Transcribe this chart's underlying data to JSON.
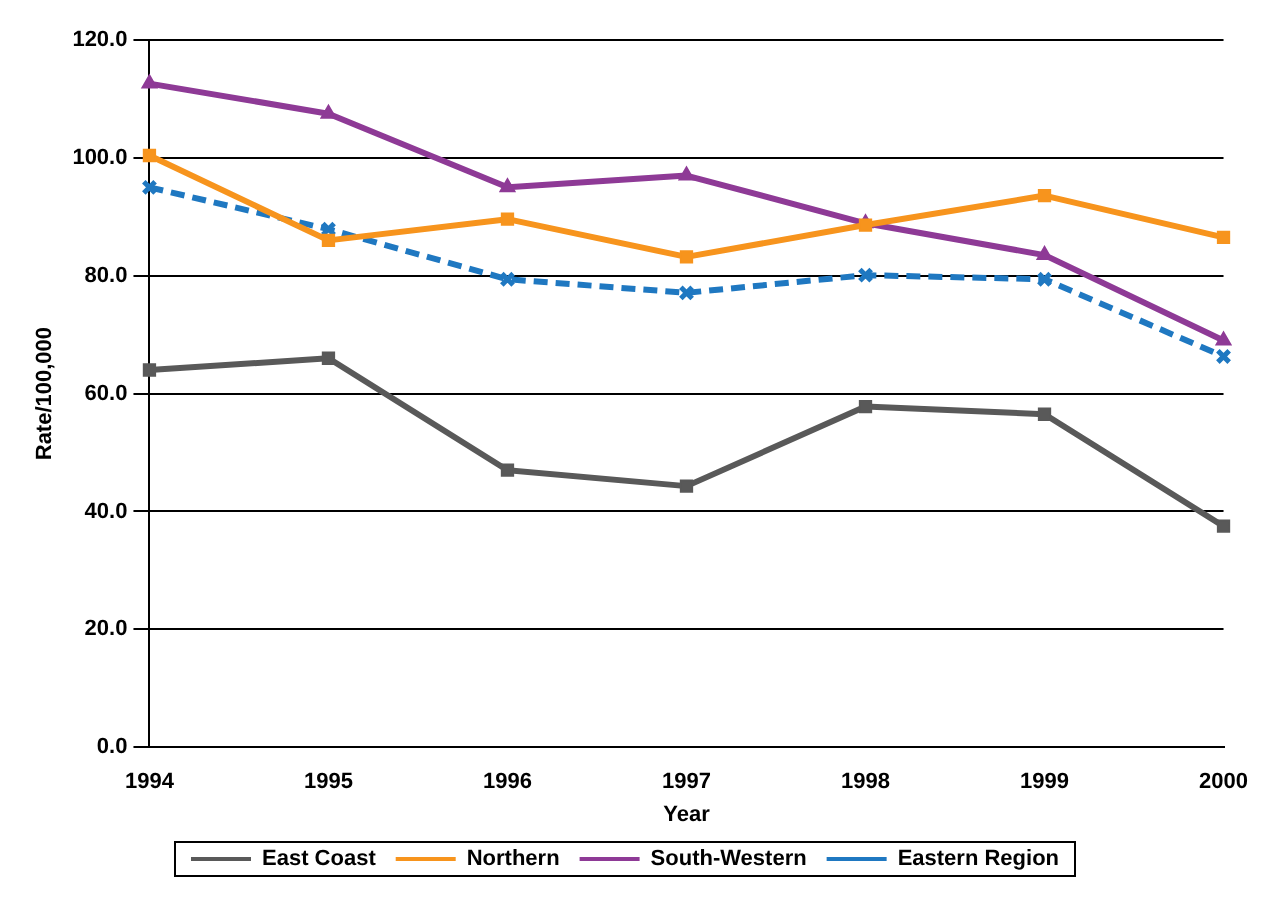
{
  "chart_data": {
    "type": "line",
    "xlabel": "Year",
    "ylabel": "Rate/100,000",
    "categories": [
      "1994",
      "1995",
      "1996",
      "1997",
      "1998",
      "1999",
      "2000"
    ],
    "series": [
      {
        "name": "East Coast",
        "color": "#595959",
        "marker": "square",
        "line_style": "solid",
        "values": [
          64,
          66,
          47,
          44.3,
          57.8,
          56.5,
          37.5
        ]
      },
      {
        "name": "Northern",
        "color": "#f7941d",
        "marker": "square",
        "line_style": "solid",
        "values": [
          100.4,
          86,
          89.6,
          83.2,
          88.6,
          93.6,
          86.5
        ]
      },
      {
        "name": "South-Western",
        "color": "#8e3a96",
        "marker": "triangle",
        "line_style": "solid",
        "values": [
          112.6,
          107.5,
          95,
          97,
          88.9,
          83.5,
          69
        ]
      },
      {
        "name": "Eastern Region",
        "color": "#1f78c1",
        "marker": "cross",
        "line_style": "dashed",
        "values": [
          95,
          87.9,
          79.4,
          77.1,
          80.1,
          79.4,
          66.3
        ]
      }
    ],
    "ylim": [
      0,
      120
    ],
    "yticks": [
      {
        "value": 0,
        "label": "0.0"
      },
      {
        "value": 20,
        "label": "20.0"
      },
      {
        "value": 40,
        "label": "40.0"
      },
      {
        "value": 60,
        "label": "60.0"
      },
      {
        "value": 80,
        "label": "80.0"
      },
      {
        "value": 100,
        "label": "100.0"
      },
      {
        "value": 120,
        "label": "120.0"
      }
    ],
    "grid": "y",
    "legend": "bottom"
  }
}
